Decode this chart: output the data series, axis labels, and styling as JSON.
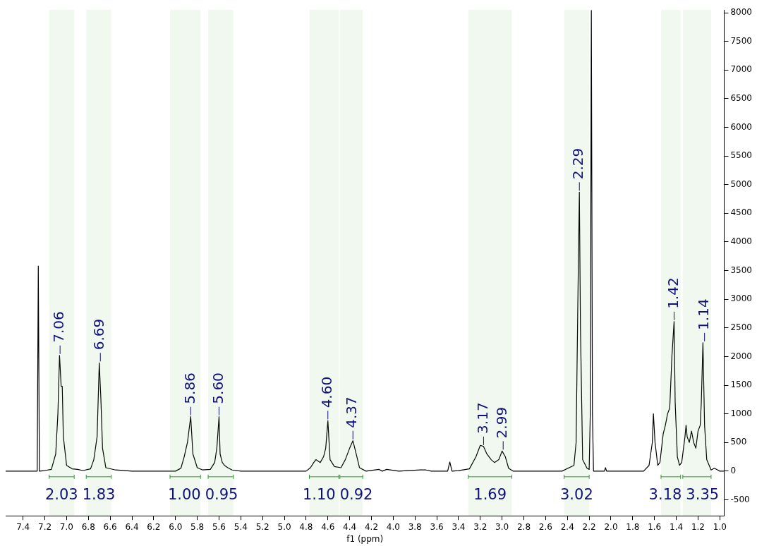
{
  "chart_data": {
    "type": "line",
    "xlabel": "f1 (ppm)",
    "xlim": [
      7.56,
      0.96
    ],
    "ylim": [
      -780,
      8050
    ],
    "xticks": [
      7.4,
      7.2,
      {
        "value": 7,
        "label": "7.0"
      },
      6.8,
      6.6,
      6.4,
      6.2,
      {
        "value": 6,
        "label": "6.0"
      },
      5.8,
      5.6,
      5.4,
      5.2,
      {
        "value": 5,
        "label": "5.0"
      },
      4.8,
      4.6,
      4.4,
      4.2,
      {
        "value": 4,
        "label": "4.0"
      },
      3.8,
      3.6,
      3.4,
      3.2,
      {
        "value": 3,
        "label": "3.0"
      },
      2.8,
      2.6,
      2.4,
      2.2,
      {
        "value": 2,
        "label": "2.0"
      },
      1.8,
      1.6,
      1.4,
      1.2,
      {
        "value": 1,
        "label": "1.0"
      }
    ],
    "yticks": [
      -500,
      0,
      500,
      1000,
      1500,
      2000,
      2500,
      3000,
      3500,
      4000,
      4500,
      5000,
      5500,
      6000,
      6500,
      7000,
      7500,
      8000
    ],
    "grid": false,
    "legend": false,
    "marker": "none",
    "line_style": "solid",
    "series": [
      {
        "color": "#000000",
        "x": [
          7.56,
          7.3,
          7.27,
          7.26,
          7.25,
          7.2,
          7.14,
          7.1,
          7.08,
          7.065,
          7.05,
          7.04,
          7.03,
          7.0,
          6.95,
          6.9,
          6.85,
          6.78,
          6.75,
          6.72,
          6.7,
          6.685,
          6.67,
          6.64,
          6.55,
          6.4,
          6.0,
          5.95,
          5.92,
          5.89,
          5.86,
          5.84,
          5.8,
          5.75,
          5.68,
          5.64,
          5.62,
          5.6,
          5.59,
          5.57,
          5.55,
          5.52,
          5.48,
          5.4,
          4.8,
          4.76,
          4.73,
          4.71,
          4.67,
          4.64,
          4.62,
          4.6,
          4.58,
          4.54,
          4.48,
          4.44,
          4.4,
          4.37,
          4.34,
          4.31,
          4.25,
          4.13,
          4.1,
          4.06,
          3.95,
          3.75,
          3.7,
          3.65,
          3.5,
          3.48,
          3.46,
          3.4,
          3.3,
          3.24,
          3.2,
          3.17,
          3.14,
          3.1,
          3.07,
          3.03,
          3.0,
          2.97,
          2.94,
          2.9,
          2.45,
          2.34,
          2.32,
          2.305,
          2.29,
          2.28,
          2.26,
          2.22,
          2.2,
          2.19,
          2.18,
          2.17,
          2.16,
          2.06,
          2.05,
          2.04,
          1.7,
          1.65,
          1.62,
          1.61,
          1.595,
          1.57,
          1.55,
          1.52,
          1.5,
          1.48,
          1.46,
          1.44,
          1.42,
          1.41,
          1.39,
          1.37,
          1.35,
          1.32,
          1.31,
          1.3,
          1.28,
          1.26,
          1.24,
          1.22,
          1.2,
          1.18,
          1.17,
          1.155,
          1.14,
          1.12,
          1.08,
          1.05,
          1.0,
          0.96
        ],
        "values": [
          0,
          0,
          0,
          3580,
          0,
          10,
          30,
          300,
          1000,
          2020,
          1480,
          1480,
          600,
          100,
          40,
          30,
          10,
          40,
          200,
          600,
          1890,
          1250,
          400,
          60,
          20,
          0,
          0,
          50,
          250,
          500,
          950,
          300,
          60,
          20,
          30,
          150,
          400,
          950,
          300,
          150,
          100,
          60,
          20,
          0,
          0,
          60,
          150,
          200,
          150,
          250,
          400,
          880,
          200,
          80,
          60,
          200,
          400,
          530,
          300,
          60,
          0,
          30,
          0,
          30,
          0,
          20,
          20,
          0,
          0,
          160,
          0,
          10,
          40,
          250,
          450,
          430,
          300,
          200,
          150,
          200,
          350,
          250,
          50,
          0,
          0,
          100,
          500,
          2800,
          4870,
          2500,
          200,
          50,
          30,
          1000,
          8040,
          1000,
          0,
          0,
          60,
          0,
          0,
          100,
          500,
          1000,
          500,
          100,
          150,
          650,
          800,
          1000,
          1100,
          2000,
          2610,
          1200,
          250,
          100,
          150,
          600,
          800,
          600,
          500,
          700,
          500,
          400,
          700,
          800,
          1200,
          2240,
          800,
          200,
          20,
          50,
          0,
          0
        ]
      }
    ],
    "annotations": [
      {
        "text": "7.06",
        "x": 7.06,
        "y": 2020
      },
      {
        "text": "6.69",
        "x": 6.69,
        "y": 1890
      },
      {
        "text": "5.86",
        "x": 5.86,
        "y": 950
      },
      {
        "text": "5.60",
        "x": 5.6,
        "y": 950
      },
      {
        "text": "4.60",
        "x": 4.6,
        "y": 880
      },
      {
        "text": "4.37",
        "x": 4.37,
        "y": 530
      },
      {
        "text": "3.17",
        "x": 3.17,
        "y": 430
      },
      {
        "text": "2.99",
        "x": 2.99,
        "y": 350
      },
      {
        "text": "2.29",
        "x": 2.29,
        "y": 4870
      },
      {
        "text": "1.42",
        "x": 1.42,
        "y": 2610
      },
      {
        "text": "1.14",
        "x": 1.14,
        "y": 2240
      }
    ],
    "bands": [
      {
        "axis": "x",
        "from": 7.16,
        "to": 6.93,
        "color": "#2e9b2e",
        "label": "2.03"
      },
      {
        "axis": "x",
        "from": 6.82,
        "to": 6.59,
        "color": "#2e9b2e",
        "label": "1.83"
      },
      {
        "axis": "x",
        "from": 6.05,
        "to": 5.77,
        "color": "#2e9b2e",
        "label": "1.00"
      },
      {
        "axis": "x",
        "from": 5.7,
        "to": 5.47,
        "color": "#2e9b2e",
        "label": "0.95"
      },
      {
        "axis": "x",
        "from": 4.77,
        "to": 4.5,
        "color": "#2e9b2e",
        "label": "1.10"
      },
      {
        "axis": "x",
        "from": 4.49,
        "to": 4.28,
        "color": "#2e9b2e",
        "label": "0.92"
      },
      {
        "axis": "x",
        "from": 3.31,
        "to": 2.91,
        "color": "#2e9b2e",
        "label": "1.69"
      },
      {
        "axis": "x",
        "from": 2.43,
        "to": 2.2,
        "color": "#2e9b2e",
        "label": "3.02"
      },
      {
        "axis": "x",
        "from": 1.54,
        "to": 1.36,
        "color": "#2e9b2e",
        "label": "3.18"
      },
      {
        "axis": "x",
        "from": 1.34,
        "to": 1.08,
        "color": "#2e9b2e",
        "label": "3.35"
      }
    ]
  }
}
